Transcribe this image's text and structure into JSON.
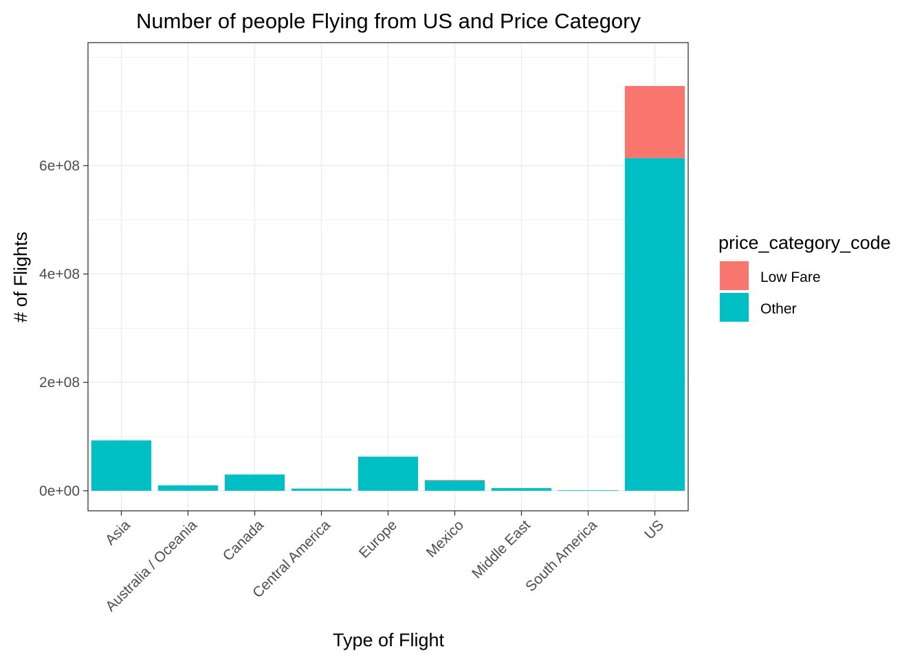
{
  "chart_data": {
    "type": "bar",
    "stacked": true,
    "title": "Number of people Flying from US and Price Category",
    "xlabel": "Type of Flight",
    "ylabel": "# of Flights",
    "categories": [
      "Asia",
      "Australia / Oceania",
      "Canada",
      "Central America",
      "Europe",
      "Mexico",
      "Middle East",
      "South America",
      "US"
    ],
    "series": [
      {
        "name": "Other",
        "color": "#00BFC4",
        "values": [
          93000000,
          10000000,
          30000000,
          4000000,
          63000000,
          19000000,
          5000000,
          800000,
          614000000
        ]
      },
      {
        "name": "Low Fare",
        "color": "#F8766D",
        "values": [
          0,
          0,
          0,
          0,
          0,
          800000,
          0,
          0,
          133000000
        ]
      }
    ],
    "ylim": [
      -37000000,
      827000000
    ],
    "yticks": [
      0,
      200000000,
      400000000,
      600000000
    ],
    "ytick_labels": [
      "0e+00",
      "2e+08",
      "4e+08",
      "6e+08"
    ],
    "grid": true,
    "legend": {
      "title": "price_category_code",
      "placement": "right",
      "entries": [
        "Low Fare",
        "Other"
      ]
    }
  }
}
